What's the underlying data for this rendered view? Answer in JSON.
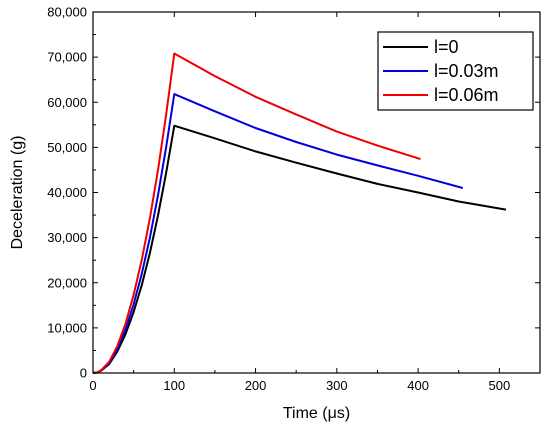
{
  "chart_data": {
    "type": "line",
    "title": "",
    "xlabel": "Time (μs)",
    "ylabel": "Deceleration (g)",
    "xlim": [
      0,
      550
    ],
    "ylim": [
      0,
      80000
    ],
    "x_ticks": [
      0,
      100,
      200,
      300,
      400,
      500
    ],
    "x_tick_labels": [
      "0",
      "100",
      "200",
      "300",
      "400",
      "500"
    ],
    "y_ticks": [
      0,
      10000,
      20000,
      30000,
      40000,
      50000,
      60000,
      70000,
      80000
    ],
    "y_tick_labels": [
      "0",
      "10,000",
      "20,000",
      "30,000",
      "40,000",
      "50,000",
      "60,000",
      "70,000",
      "80,000"
    ],
    "grid": false,
    "legend_position": "top-right",
    "series": [
      {
        "name": "l=0",
        "color": "#000000",
        "x": [
          0,
          5,
          10,
          20,
          30,
          40,
          50,
          60,
          70,
          80,
          90,
          100,
          150,
          200,
          250,
          300,
          350,
          400,
          450,
          508
        ],
        "y": [
          0,
          100,
          500,
          2000,
          4800,
          8600,
          13500,
          19500,
          26600,
          34900,
          44300,
          54800,
          52000,
          49100,
          46600,
          44200,
          41900,
          40000,
          38000,
          36200
        ]
      },
      {
        "name": "l=0.03m",
        "color": "#0000dd",
        "x": [
          0,
          5,
          10,
          20,
          30,
          40,
          50,
          60,
          70,
          80,
          90,
          100,
          150,
          200,
          250,
          300,
          350,
          400,
          455
        ],
        "y": [
          0,
          100,
          550,
          2200,
          5300,
          9600,
          15200,
          22000,
          30000,
          39400,
          50000,
          61800,
          58000,
          54300,
          51200,
          48400,
          46000,
          43700,
          41000
        ]
      },
      {
        "name": "l=0.06m",
        "color": "#ee0000",
        "x": [
          0,
          5,
          10,
          20,
          30,
          40,
          50,
          60,
          70,
          80,
          90,
          100,
          150,
          200,
          250,
          300,
          350,
          403
        ],
        "y": [
          0,
          110,
          600,
          2500,
          6000,
          10900,
          17300,
          25100,
          34300,
          45000,
          57200,
          70800,
          65800,
          61200,
          57300,
          53500,
          50400,
          47400
        ]
      }
    ]
  }
}
